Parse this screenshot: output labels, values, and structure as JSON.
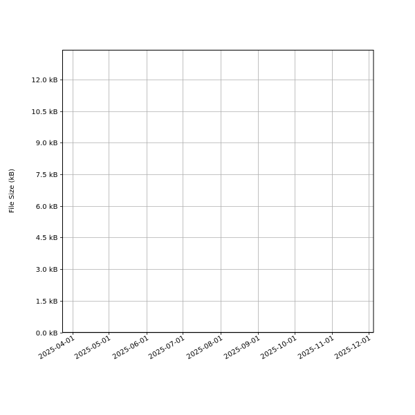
{
  "chart_data": {
    "type": "line",
    "title": "",
    "xlabel": "",
    "ylabel": "File Size (kB)",
    "x_axis_type": "date",
    "xlim": [
      "2025-03-24",
      "2025-12-05"
    ],
    "ylim": [
      0,
      13.4
    ],
    "x_ticks": [
      "2025-04-01",
      "2025-05-01",
      "2025-06-01",
      "2025-07-01",
      "2025-08-01",
      "2025-09-01",
      "2025-10-01",
      "2025-11-01",
      "2025-12-01"
    ],
    "y_ticks": [
      0,
      1.5,
      3.0,
      4.5,
      6.0,
      7.5,
      9.0,
      10.5,
      12.0
    ],
    "y_tick_labels": [
      "0.0 kB",
      "1.5 kB",
      "3.0 kB",
      "4.5 kB",
      "6.0 kB",
      "7.5 kB",
      "9.0 kB",
      "10.5 kB",
      "12.0 kB"
    ],
    "grid": true,
    "grid_color": "#b0b0b0",
    "series": []
  }
}
